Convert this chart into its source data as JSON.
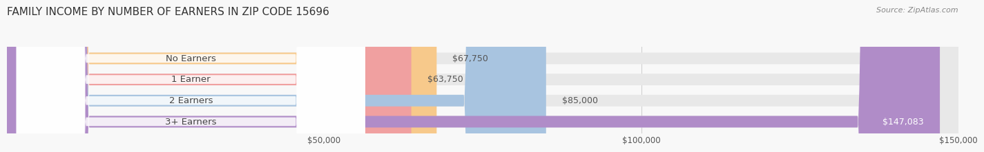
{
  "title": "FAMILY INCOME BY NUMBER OF EARNERS IN ZIP CODE 15696",
  "source": "Source: ZipAtlas.com",
  "categories": [
    "No Earners",
    "1 Earner",
    "2 Earners",
    "3+ Earners"
  ],
  "values": [
    67750,
    63750,
    85000,
    147083
  ],
  "bar_colors": [
    "#f7c98b",
    "#f0a0a0",
    "#a8c4e0",
    "#b08cc8"
  ],
  "value_labels": [
    "$67,750",
    "$63,750",
    "$85,000",
    "$147,083"
  ],
  "x_min": 0,
  "x_max": 150000,
  "x_ticks": [
    50000,
    100000,
    150000
  ],
  "x_tick_labels": [
    "$50,000",
    "$100,000",
    "$150,000"
  ],
  "bg_color": "#f8f8f8",
  "bar_height": 0.55,
  "title_fontsize": 11,
  "label_fontsize": 9.5,
  "value_fontsize": 9
}
